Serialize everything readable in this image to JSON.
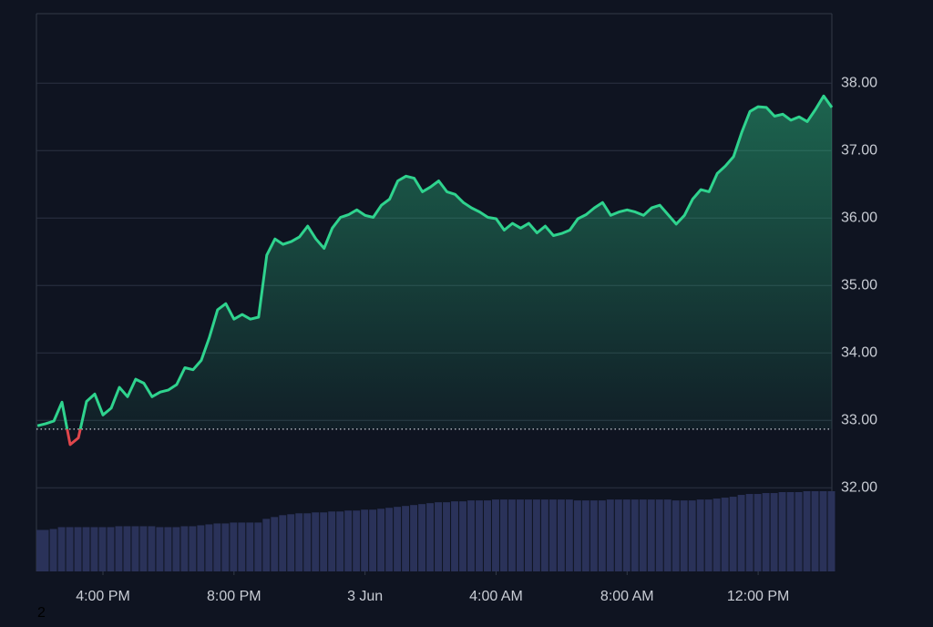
{
  "chart_data": {
    "type": "line",
    "color": "#2fd38e",
    "below_color": "#e0474c",
    "baseline": 32.87,
    "x": [
      14.0,
      14.25,
      14.5,
      14.75,
      15.0,
      15.25,
      15.5,
      15.75,
      16.0,
      16.25,
      16.5,
      16.75,
      17.0,
      17.25,
      17.5,
      17.75,
      18.0,
      18.25,
      18.5,
      18.75,
      19.0,
      19.25,
      19.5,
      19.75,
      20.0,
      20.25,
      20.5,
      20.75,
      21.0,
      21.25,
      21.5,
      21.75,
      22.0,
      22.25,
      22.5,
      22.75,
      23.0,
      23.25,
      23.5,
      23.75,
      24.0,
      24.25,
      24.5,
      24.75,
      25.0,
      25.25,
      25.5,
      25.75,
      26.0,
      26.25,
      26.5,
      26.75,
      27.0,
      27.25,
      27.5,
      27.75,
      28.0,
      28.25,
      28.5,
      28.75,
      29.0,
      29.25,
      29.5,
      29.75,
      30.0,
      30.25,
      30.5,
      30.75,
      31.0,
      31.25,
      31.5,
      31.75,
      32.0,
      32.25,
      32.5,
      32.75,
      33.0,
      33.25,
      33.5,
      33.75,
      34.0,
      34.25,
      34.5,
      34.75,
      35.0,
      35.25,
      35.5,
      35.75,
      36.0,
      36.25,
      36.5,
      36.75,
      37.0,
      37.25,
      37.5,
      37.75,
      38.0,
      38.25
    ],
    "values": [
      32.92,
      32.95,
      32.99,
      33.27,
      32.64,
      32.74,
      33.28,
      33.39,
      33.08,
      33.18,
      33.49,
      33.35,
      33.61,
      33.55,
      33.35,
      33.42,
      33.45,
      33.53,
      33.78,
      33.75,
      33.89,
      34.23,
      34.64,
      34.73,
      34.5,
      34.57,
      34.5,
      34.53,
      35.45,
      35.69,
      35.61,
      35.65,
      35.72,
      35.88,
      35.69,
      35.55,
      35.85,
      36.01,
      36.05,
      36.12,
      36.04,
      36.01,
      36.19,
      36.28,
      36.55,
      36.62,
      36.59,
      36.39,
      36.46,
      36.55,
      36.39,
      36.35,
      36.23,
      36.15,
      36.09,
      36.01,
      35.99,
      35.82,
      35.92,
      35.85,
      35.92,
      35.78,
      35.88,
      35.74,
      35.77,
      35.82,
      35.99,
      36.05,
      36.15,
      36.23,
      36.04,
      36.09,
      36.12,
      36.09,
      36.04,
      36.15,
      36.19,
      36.05,
      35.91,
      36.04,
      36.28,
      36.42,
      36.39,
      36.66,
      36.77,
      36.91,
      37.27,
      37.58,
      37.65,
      37.64,
      37.51,
      37.54,
      37.45,
      37.5,
      37.43,
      37.61,
      37.81,
      37.64
    ],
    "volume": {
      "color": "#2a3259",
      "values": [
        45,
        45,
        46,
        48,
        48,
        48,
        48,
        48,
        48,
        48,
        49,
        49,
        49,
        49,
        49,
        48,
        48,
        48,
        49,
        49,
        50,
        51,
        52,
        52,
        53,
        53,
        53,
        53,
        57,
        59,
        61,
        62,
        63,
        63,
        64,
        64,
        65,
        65,
        66,
        66,
        67,
        67,
        68,
        69,
        70,
        71,
        72,
        73,
        74,
        75,
        75,
        76,
        76,
        77,
        77,
        77,
        78,
        78,
        78,
        78,
        78,
        78,
        78,
        78,
        78,
        78,
        77,
        77,
        77,
        77,
        78,
        78,
        78,
        78,
        78,
        78,
        78,
        78,
        77,
        77,
        77,
        78,
        78,
        79,
        80,
        81,
        83,
        84,
        84,
        85,
        85,
        86,
        86,
        86,
        87,
        87,
        87,
        87
      ]
    },
    "xlim": [
      13.97,
      38.25
    ],
    "xticks": [
      {
        "value": 16,
        "label": "4:00 PM"
      },
      {
        "value": 20,
        "label": "8:00 PM"
      },
      {
        "value": 24,
        "label": "3 Jun"
      },
      {
        "value": 28,
        "label": "4:00 AM"
      },
      {
        "value": 32,
        "label": "8:00 AM"
      },
      {
        "value": 36,
        "label": "12:00 PM"
      }
    ],
    "ylim": [
      30.76,
      39.03
    ],
    "yticks": [
      {
        "value": 32,
        "label": "32.00"
      },
      {
        "value": 33,
        "label": "33.00"
      },
      {
        "value": 34,
        "label": "34.00"
      },
      {
        "value": 35,
        "label": "35.00"
      },
      {
        "value": 36,
        "label": "36.00"
      },
      {
        "value": 37,
        "label": "37.00"
      },
      {
        "value": 38,
        "label": "38.00"
      }
    ],
    "grid": true,
    "footer_text": "2"
  }
}
